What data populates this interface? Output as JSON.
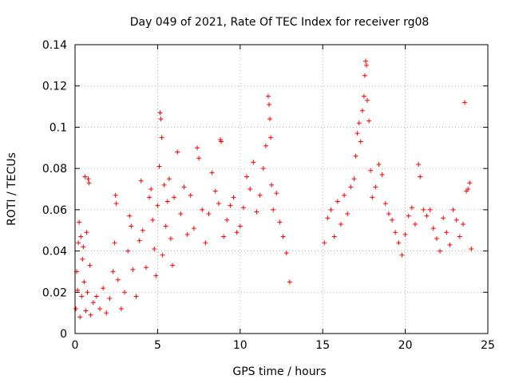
{
  "chart_data": {
    "type": "scatter",
    "title": "Day 049 of 2021, Rate Of TEC Index for receiver rg08",
    "xlabel": "GPS time / hours",
    "ylabel": "ROTI / TECUs",
    "xlim": [
      0,
      25
    ],
    "ylim": [
      0,
      0.14
    ],
    "xticks": [
      0,
      5,
      10,
      15,
      20,
      25
    ],
    "xtick_labels": [
      "0",
      "5",
      "10",
      "15",
      "20",
      "25"
    ],
    "yticks": [
      0,
      0.02,
      0.04,
      0.06,
      0.08,
      0.1,
      0.12,
      0.14
    ],
    "ytick_labels": [
      "0",
      "0.02",
      "0.04",
      "0.06",
      "0.08",
      "0.1",
      "0.12",
      "0.14"
    ],
    "grid": true,
    "marker": "plus",
    "marker_color": "#ff0000",
    "data_gap_hours": [
      13.1,
      15.0
    ],
    "series": [
      {
        "name": "ROTI",
        "points": [
          [
            0.05,
            0.012
          ],
          [
            0.1,
            0.03
          ],
          [
            0.15,
            0.021
          ],
          [
            0.2,
            0.044
          ],
          [
            0.25,
            0.054
          ],
          [
            0.3,
            0.008
          ],
          [
            0.35,
            0.047
          ],
          [
            0.4,
            0.018
          ],
          [
            0.45,
            0.036
          ],
          [
            0.5,
            0.042
          ],
          [
            0.55,
            0.025
          ],
          [
            0.6,
            0.076
          ],
          [
            0.65,
            0.011
          ],
          [
            0.7,
            0.049
          ],
          [
            0.75,
            0.02
          ],
          [
            0.8,
            0.075
          ],
          [
            0.85,
            0.073
          ],
          [
            0.9,
            0.033
          ],
          [
            0.95,
            0.009
          ],
          [
            1.1,
            0.015
          ],
          [
            1.3,
            0.018
          ],
          [
            1.5,
            0.012
          ],
          [
            1.7,
            0.022
          ],
          [
            1.9,
            0.01
          ],
          [
            2.1,
            0.017
          ],
          [
            2.3,
            0.03
          ],
          [
            2.4,
            0.044
          ],
          [
            2.45,
            0.067
          ],
          [
            2.5,
            0.063
          ],
          [
            2.6,
            0.026
          ],
          [
            2.8,
            0.012
          ],
          [
            3.0,
            0.02
          ],
          [
            3.2,
            0.04
          ],
          [
            3.3,
            0.057
          ],
          [
            3.4,
            0.052
          ],
          [
            3.5,
            0.031
          ],
          [
            3.7,
            0.018
          ],
          [
            3.9,
            0.045
          ],
          [
            4.0,
            0.074
          ],
          [
            4.1,
            0.05
          ],
          [
            4.3,
            0.032
          ],
          [
            4.5,
            0.066
          ],
          [
            4.6,
            0.07
          ],
          [
            4.7,
            0.055
          ],
          [
            4.8,
            0.041
          ],
          [
            4.9,
            0.028
          ],
          [
            5.0,
            0.062
          ],
          [
            5.1,
            0.081
          ],
          [
            5.15,
            0.107
          ],
          [
            5.2,
            0.104
          ],
          [
            5.25,
            0.095
          ],
          [
            5.3,
            0.038
          ],
          [
            5.4,
            0.072
          ],
          [
            5.5,
            0.052
          ],
          [
            5.6,
            0.064
          ],
          [
            5.7,
            0.075
          ],
          [
            5.8,
            0.046
          ],
          [
            5.9,
            0.033
          ],
          [
            6.0,
            0.066
          ],
          [
            6.2,
            0.088
          ],
          [
            6.4,
            0.058
          ],
          [
            6.6,
            0.071
          ],
          [
            6.8,
            0.048
          ],
          [
            7.0,
            0.067
          ],
          [
            7.2,
            0.051
          ],
          [
            7.4,
            0.09
          ],
          [
            7.5,
            0.085
          ],
          [
            7.7,
            0.06
          ],
          [
            7.9,
            0.044
          ],
          [
            8.1,
            0.058
          ],
          [
            8.3,
            0.078
          ],
          [
            8.5,
            0.069
          ],
          [
            8.7,
            0.063
          ],
          [
            8.8,
            0.094
          ],
          [
            8.85,
            0.093
          ],
          [
            9.0,
            0.047
          ],
          [
            9.2,
            0.055
          ],
          [
            9.4,
            0.062
          ],
          [
            9.6,
            0.066
          ],
          [
            9.8,
            0.049
          ],
          [
            10.0,
            0.052
          ],
          [
            10.2,
            0.061
          ],
          [
            10.4,
            0.076
          ],
          [
            10.6,
            0.07
          ],
          [
            10.8,
            0.083
          ],
          [
            11.0,
            0.059
          ],
          [
            11.2,
            0.067
          ],
          [
            11.4,
            0.08
          ],
          [
            11.55,
            0.091
          ],
          [
            11.7,
            0.115
          ],
          [
            11.75,
            0.111
          ],
          [
            11.8,
            0.104
          ],
          [
            11.85,
            0.095
          ],
          [
            11.9,
            0.072
          ],
          [
            12.0,
            0.06
          ],
          [
            12.2,
            0.068
          ],
          [
            12.4,
            0.054
          ],
          [
            12.6,
            0.047
          ],
          [
            12.8,
            0.039
          ],
          [
            13.0,
            0.025
          ],
          [
            15.1,
            0.044
          ],
          [
            15.3,
            0.056
          ],
          [
            15.5,
            0.06
          ],
          [
            15.7,
            0.047
          ],
          [
            15.9,
            0.064
          ],
          [
            16.1,
            0.053
          ],
          [
            16.3,
            0.067
          ],
          [
            16.5,
            0.058
          ],
          [
            16.7,
            0.071
          ],
          [
            16.9,
            0.075
          ],
          [
            17.0,
            0.086
          ],
          [
            17.1,
            0.097
          ],
          [
            17.2,
            0.102
          ],
          [
            17.3,
            0.093
          ],
          [
            17.4,
            0.108
          ],
          [
            17.5,
            0.115
          ],
          [
            17.55,
            0.125
          ],
          [
            17.6,
            0.132
          ],
          [
            17.65,
            0.13
          ],
          [
            17.7,
            0.113
          ],
          [
            17.8,
            0.103
          ],
          [
            17.9,
            0.079
          ],
          [
            18.0,
            0.066
          ],
          [
            18.2,
            0.071
          ],
          [
            18.4,
            0.082
          ],
          [
            18.6,
            0.077
          ],
          [
            18.8,
            0.063
          ],
          [
            19.0,
            0.058
          ],
          [
            19.2,
            0.055
          ],
          [
            19.4,
            0.049
          ],
          [
            19.6,
            0.044
          ],
          [
            19.8,
            0.038
          ],
          [
            20.0,
            0.048
          ],
          [
            20.2,
            0.057
          ],
          [
            20.4,
            0.061
          ],
          [
            20.6,
            0.053
          ],
          [
            20.8,
            0.082
          ],
          [
            20.9,
            0.076
          ],
          [
            21.1,
            0.06
          ],
          [
            21.3,
            0.057
          ],
          [
            21.5,
            0.06
          ],
          [
            21.7,
            0.051
          ],
          [
            21.9,
            0.046
          ],
          [
            22.1,
            0.04
          ],
          [
            22.3,
            0.056
          ],
          [
            22.5,
            0.049
          ],
          [
            22.7,
            0.043
          ],
          [
            22.9,
            0.06
          ],
          [
            23.1,
            0.055
          ],
          [
            23.3,
            0.047
          ],
          [
            23.5,
            0.053
          ],
          [
            23.6,
            0.112
          ],
          [
            23.7,
            0.069
          ],
          [
            23.8,
            0.07
          ],
          [
            23.9,
            0.073
          ],
          [
            24.0,
            0.041
          ]
        ]
      }
    ]
  }
}
